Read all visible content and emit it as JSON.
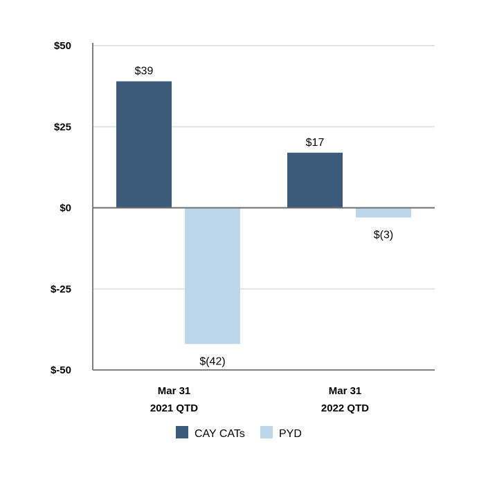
{
  "chart_data": {
    "type": "bar",
    "categories": [
      [
        "Mar 31",
        "2021 QTD"
      ],
      [
        "Mar 31",
        "2022 QTD"
      ]
    ],
    "series": [
      {
        "name": "CAY CATs",
        "color": "#3c5a7a",
        "values": [
          39,
          17
        ],
        "labels": [
          "$39",
          "$17"
        ]
      },
      {
        "name": "PYD",
        "color": "#bdd7ea",
        "values": [
          -42,
          -3
        ],
        "labels": [
          "$(42)",
          "$(3)"
        ]
      }
    ],
    "ylim": [
      -50,
      50
    ],
    "yticks": [
      50,
      25,
      0,
      -25,
      -50
    ],
    "ytick_labels": [
      "$50",
      "$25",
      "$0",
      "$-25",
      "$-50"
    ],
    "grid": true,
    "legend": "bottom-center",
    "title": "",
    "xlabel": "",
    "ylabel": ""
  }
}
